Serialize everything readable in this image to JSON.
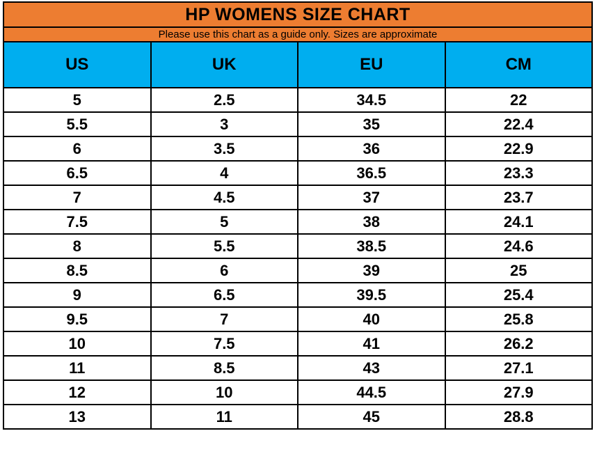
{
  "title": "HP WOMENS SIZE CHART",
  "subtitle": "Please use this chart as a guide only. Sizes are approximate",
  "colors": {
    "title_band": "#ED7D31",
    "subtitle_band": "#ED7D31",
    "header_band": "#00AEEF",
    "grid_border": "#000000",
    "text": "#000000",
    "row_background": "#FFFFFF"
  },
  "chart_data": {
    "type": "table",
    "title": "HP WOMENS SIZE CHART",
    "subtitle": "Please use this chart as a guide only. Sizes are approximate",
    "columns": [
      "US",
      "UK",
      "EU",
      "CM"
    ],
    "rows": [
      [
        "5",
        "2.5",
        "34.5",
        "22"
      ],
      [
        "5.5",
        "3",
        "35",
        "22.4"
      ],
      [
        "6",
        "3.5",
        "36",
        "22.9"
      ],
      [
        "6.5",
        "4",
        "36.5",
        "23.3"
      ],
      [
        "7",
        "4.5",
        "37",
        "23.7"
      ],
      [
        "7.5",
        "5",
        "38",
        "24.1"
      ],
      [
        "8",
        "5.5",
        "38.5",
        "24.6"
      ],
      [
        "8.5",
        "6",
        "39",
        "25"
      ],
      [
        "9",
        "6.5",
        "39.5",
        "25.4"
      ],
      [
        "9.5",
        "7",
        "40",
        "25.8"
      ],
      [
        "10",
        "7.5",
        "41",
        "26.2"
      ],
      [
        "11",
        "8.5",
        "43",
        "27.1"
      ],
      [
        "12",
        "10",
        "44.5",
        "27.9"
      ],
      [
        "13",
        "11",
        "45",
        "28.8"
      ]
    ]
  }
}
